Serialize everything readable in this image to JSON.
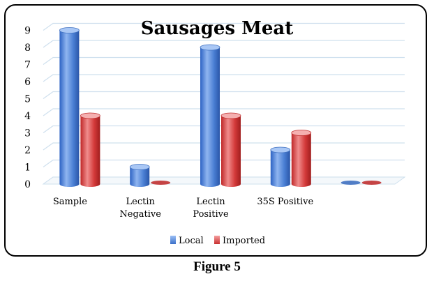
{
  "figure": {
    "caption": "Figure 5"
  },
  "chart_data": {
    "type": "bar",
    "title": "Sausages Meat",
    "categories": [
      [
        "Sample"
      ],
      [
        "Lectin",
        "Negative"
      ],
      [
        "Lectin",
        "Positive"
      ],
      [
        "35S Positive"
      ],
      [
        ""
      ]
    ],
    "series": [
      {
        "name": "Local",
        "values": [
          9,
          1,
          8,
          2,
          0
        ],
        "color": "#4a7fd4"
      },
      {
        "name": "Imported",
        "values": [
          4,
          0,
          4,
          3,
          0
        ],
        "color": "#d43a3a"
      }
    ],
    "ylim": [
      0,
      9
    ],
    "yticks": [
      0,
      1,
      2,
      3,
      4,
      5,
      6,
      7,
      8,
      9
    ],
    "grid": true,
    "legend_position": "bottom"
  }
}
